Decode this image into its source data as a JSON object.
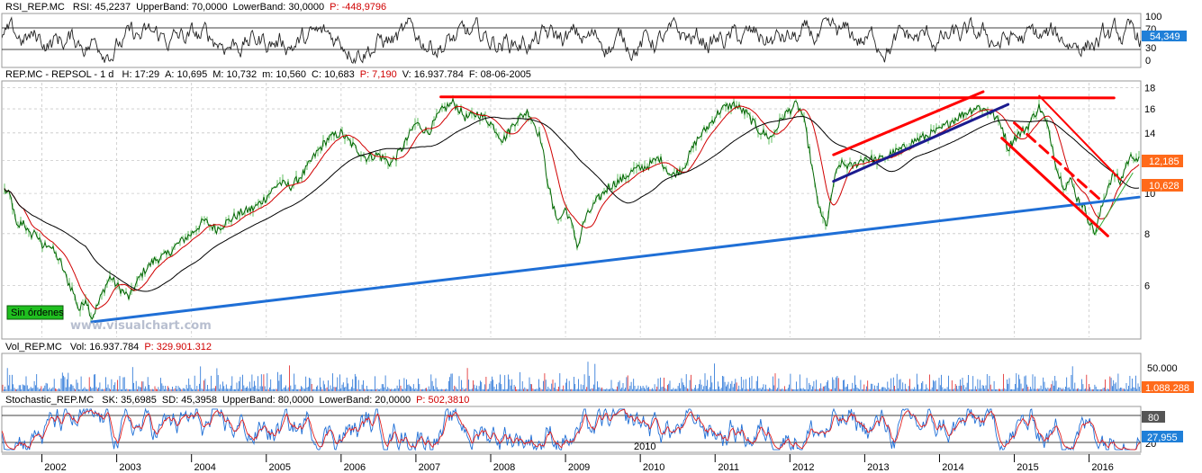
{
  "colors": {
    "price": "#006400",
    "price_fill": "#8fd18f",
    "ma_fast": "#d00000",
    "ma_slow": "#000000",
    "trend_red": "#ff0000",
    "trend_blue": "#1f6fd6",
    "trend_navy": "#1b1b8f",
    "trend_green": "#33aa33",
    "osc_red": "#e02020",
    "osc_blue": "#1f6fd6",
    "volume": "#1f6fd6",
    "badge_blue": "#1f7fd8",
    "badge_orange": "#ff6a1a",
    "badge_green_bg": "#1fbf1f",
    "panel_border": "#9a9a9a",
    "grid": "#c8c8c8"
  },
  "rsi_panel": {
    "name": "RSI_REP.MC",
    "fields": [
      {
        "label": "RSI: 45,2237",
        "color": "#000000"
      },
      {
        "label": "UpperBand: 70,0000",
        "color": "#000000"
      },
      {
        "label": "LowerBand: 30,0000",
        "color": "#000000"
      },
      {
        "label": "P: -448,9796",
        "color": "#d00000"
      }
    ],
    "ticks": [
      "100",
      "70",
      "30",
      "0"
    ],
    "badge": "54,349"
  },
  "price_panel": {
    "title": "REP.MC - REPSOL - 1 d",
    "fields": [
      {
        "label": "H: 17:29",
        "color": "#000000"
      },
      {
        "label": "A: 10,695",
        "color": "#000000"
      },
      {
        "label": "M: 10,732",
        "color": "#000000"
      },
      {
        "label": "m: 10,560",
        "color": "#000000"
      },
      {
        "label": "C: 10,683",
        "color": "#000000"
      },
      {
        "label": "P: 7,190",
        "color": "#d00000"
      },
      {
        "label": "V: 16.937.784",
        "color": "#000000"
      },
      {
        "label": "F: 08-06-2005",
        "color": "#000000"
      }
    ],
    "badge_top": "12,185",
    "badge_bottom": "10,628",
    "orders_label": "Sin órdenes",
    "watermark": "www.visualchart.com"
  },
  "volume_panel": {
    "name": "Vol_REP.MC",
    "fields": [
      {
        "label": "Vol: 16.937.784",
        "color": "#000000"
      },
      {
        "label": "P: 329.901.312",
        "color": "#d00000"
      }
    ],
    "ticks": [
      "50.000"
    ],
    "badge": "1.088.288"
  },
  "stochastic_panel": {
    "name": "Stochastic_REP.MC",
    "fields": [
      {
        "label": "SK: 35,6985",
        "color": "#000000"
      },
      {
        "label": "SD: 45,3958",
        "color": "#000000"
      },
      {
        "label": "UpperBand: 80,0000",
        "color": "#000000"
      },
      {
        "label": "LowerBand: 20,0000",
        "color": "#000000"
      },
      {
        "label": "P: 502,3810",
        "color": "#d00000"
      }
    ],
    "ticks": [
      "80",
      "20"
    ],
    "badge": "27,955",
    "inner_year_label": "2010"
  },
  "chart_data": {
    "type": "line",
    "x_axis": {
      "type": "date",
      "range": [
        "2001-07",
        "2016-09"
      ],
      "tick_labels": [
        "2002",
        "2003",
        "2004",
        "2005",
        "2006",
        "2007",
        "2008",
        "2009",
        "2010",
        "2011",
        "2012",
        "2013",
        "2014",
        "2015",
        "2016"
      ]
    },
    "y_axis": {
      "scale": "log",
      "range": [
        4.5,
        18.5
      ],
      "tick_labels": [
        "18",
        "16",
        "14",
        "12",
        "10",
        "8",
        "6"
      ]
    },
    "grid": true,
    "series": [],
    "price_path": [
      {
        "x": "2001-07",
        "y": 10.2
      },
      {
        "x": "2001-08",
        "y": 9.8
      },
      {
        "x": "2001-09",
        "y": 8.2
      },
      {
        "x": "2001-10",
        "y": 8.6
      },
      {
        "x": "2001-11",
        "y": 7.9
      },
      {
        "x": "2001-12",
        "y": 8.1
      },
      {
        "x": "2002-01",
        "y": 7.4
      },
      {
        "x": "2002-02",
        "y": 7.6
      },
      {
        "x": "2002-03",
        "y": 7.2
      },
      {
        "x": "2002-04",
        "y": 6.8
      },
      {
        "x": "2002-05",
        "y": 6.2
      },
      {
        "x": "2002-06",
        "y": 5.8
      },
      {
        "x": "2002-07",
        "y": 5.2
      },
      {
        "x": "2002-08",
        "y": 5.6
      },
      {
        "x": "2002-09",
        "y": 5.0
      },
      {
        "x": "2002-10",
        "y": 5.4
      },
      {
        "x": "2002-11",
        "y": 5.9
      },
      {
        "x": "2002-12",
        "y": 6.3
      },
      {
        "x": "2003-01",
        "y": 6.0
      },
      {
        "x": "2003-03",
        "y": 5.6
      },
      {
        "x": "2003-05",
        "y": 6.4
      },
      {
        "x": "2003-07",
        "y": 6.9
      },
      {
        "x": "2003-09",
        "y": 7.1
      },
      {
        "x": "2003-11",
        "y": 7.6
      },
      {
        "x": "2004-01",
        "y": 8.0
      },
      {
        "x": "2004-03",
        "y": 8.6
      },
      {
        "x": "2004-05",
        "y": 8.2
      },
      {
        "x": "2004-07",
        "y": 8.6
      },
      {
        "x": "2004-09",
        "y": 9.0
      },
      {
        "x": "2004-11",
        "y": 9.2
      },
      {
        "x": "2005-01",
        "y": 9.8
      },
      {
        "x": "2005-03",
        "y": 10.6
      },
      {
        "x": "2005-05",
        "y": 10.4
      },
      {
        "x": "2005-07",
        "y": 11.2
      },
      {
        "x": "2005-09",
        "y": 12.5
      },
      {
        "x": "2005-11",
        "y": 13.6
      },
      {
        "x": "2006-01",
        "y": 14.0
      },
      {
        "x": "2006-03",
        "y": 13.0
      },
      {
        "x": "2006-05",
        "y": 12.2
      },
      {
        "x": "2006-07",
        "y": 12.4
      },
      {
        "x": "2006-09",
        "y": 11.8
      },
      {
        "x": "2006-11",
        "y": 13.0
      },
      {
        "x": "2007-01",
        "y": 14.8
      },
      {
        "x": "2007-03",
        "y": 14.0
      },
      {
        "x": "2007-05",
        "y": 15.8
      },
      {
        "x": "2007-07",
        "y": 16.6
      },
      {
        "x": "2007-09",
        "y": 15.2
      },
      {
        "x": "2007-11",
        "y": 15.6
      },
      {
        "x": "2008-01",
        "y": 14.8
      },
      {
        "x": "2008-03",
        "y": 13.4
      },
      {
        "x": "2008-05",
        "y": 15.0
      },
      {
        "x": "2008-07",
        "y": 15.8
      },
      {
        "x": "2008-09",
        "y": 13.6
      },
      {
        "x": "2008-10",
        "y": 11.0
      },
      {
        "x": "2008-11",
        "y": 9.2
      },
      {
        "x": "2008-12",
        "y": 8.6
      },
      {
        "x": "2009-01",
        "y": 9.2
      },
      {
        "x": "2009-02",
        "y": 8.4
      },
      {
        "x": "2009-03",
        "y": 7.4
      },
      {
        "x": "2009-04",
        "y": 8.6
      },
      {
        "x": "2009-06",
        "y": 9.6
      },
      {
        "x": "2009-08",
        "y": 10.4
      },
      {
        "x": "2009-10",
        "y": 10.8
      },
      {
        "x": "2009-12",
        "y": 11.4
      },
      {
        "x": "2010-02",
        "y": 11.6
      },
      {
        "x": "2010-04",
        "y": 12.2
      },
      {
        "x": "2010-06",
        "y": 11.0
      },
      {
        "x": "2010-08",
        "y": 11.6
      },
      {
        "x": "2010-10",
        "y": 13.4
      },
      {
        "x": "2010-12",
        "y": 14.6
      },
      {
        "x": "2011-02",
        "y": 16.0
      },
      {
        "x": "2011-04",
        "y": 16.4
      },
      {
        "x": "2011-06",
        "y": 15.6
      },
      {
        "x": "2011-08",
        "y": 14.2
      },
      {
        "x": "2011-10",
        "y": 13.6
      },
      {
        "x": "2011-12",
        "y": 15.4
      },
      {
        "x": "2012-02",
        "y": 16.4
      },
      {
        "x": "2012-03",
        "y": 15.6
      },
      {
        "x": "2012-04",
        "y": 13.0
      },
      {
        "x": "2012-05",
        "y": 10.4
      },
      {
        "x": "2012-06",
        "y": 8.8
      },
      {
        "x": "2012-07",
        "y": 8.4
      },
      {
        "x": "2012-08",
        "y": 10.6
      },
      {
        "x": "2012-09",
        "y": 11.8
      },
      {
        "x": "2012-11",
        "y": 11.6
      },
      {
        "x": "2013-01",
        "y": 12.2
      },
      {
        "x": "2013-03",
        "y": 12.0
      },
      {
        "x": "2013-05",
        "y": 12.4
      },
      {
        "x": "2013-07",
        "y": 12.8
      },
      {
        "x": "2013-09",
        "y": 13.4
      },
      {
        "x": "2013-11",
        "y": 13.8
      },
      {
        "x": "2014-01",
        "y": 14.2
      },
      {
        "x": "2014-03",
        "y": 15.0
      },
      {
        "x": "2014-05",
        "y": 15.6
      },
      {
        "x": "2014-07",
        "y": 16.2
      },
      {
        "x": "2014-09",
        "y": 15.8
      },
      {
        "x": "2014-11",
        "y": 14.6
      },
      {
        "x": "2014-12",
        "y": 12.8
      },
      {
        "x": "2015-01",
        "y": 13.6
      },
      {
        "x": "2015-03",
        "y": 14.4
      },
      {
        "x": "2015-05",
        "y": 16.2
      },
      {
        "x": "2015-06",
        "y": 15.0
      },
      {
        "x": "2015-07",
        "y": 13.2
      },
      {
        "x": "2015-08",
        "y": 11.2
      },
      {
        "x": "2015-09",
        "y": 10.4
      },
      {
        "x": "2015-10",
        "y": 10.8
      },
      {
        "x": "2015-11",
        "y": 9.8
      },
      {
        "x": "2015-12",
        "y": 9.4
      },
      {
        "x": "2016-01",
        "y": 8.6
      },
      {
        "x": "2016-02",
        "y": 8.0
      },
      {
        "x": "2016-03",
        "y": 9.2
      },
      {
        "x": "2016-04",
        "y": 10.4
      },
      {
        "x": "2016-05",
        "y": 11.2
      },
      {
        "x": "2016-06",
        "y": 10.6
      },
      {
        "x": "2016-07",
        "y": 11.8
      },
      {
        "x": "2016-08",
        "y": 12.4
      },
      {
        "x": "2016-09",
        "y": 12.0
      }
    ],
    "trendlines": [
      {
        "name": "support-blue",
        "color": "#1f6fd6",
        "width": 3,
        "dash": false,
        "from": {
          "x": "2002-09",
          "y": 4.9
        },
        "to": {
          "x": "2016-09",
          "y": 9.8
        }
      },
      {
        "name": "resistance-red",
        "color": "#ff0000",
        "width": 3,
        "dash": false,
        "from": {
          "x": "2007-05",
          "y": 17.1
        },
        "to": {
          "x": "2016-05",
          "y": 17.0
        }
      },
      {
        "name": "channel-up-top",
        "color": "#ff0000",
        "width": 3,
        "dash": false,
        "from": {
          "x": "2012-08",
          "y": 12.4
        },
        "to": {
          "x": "2014-08",
          "y": 17.6
        }
      },
      {
        "name": "channel-up-bottom",
        "color": "#1b1b8f",
        "width": 3,
        "dash": false,
        "from": {
          "x": "2012-08",
          "y": 10.7
        },
        "to": {
          "x": "2014-12",
          "y": 16.4
        }
      },
      {
        "name": "channel-down-top",
        "color": "#ff0000",
        "width": 2,
        "dash": false,
        "from": {
          "x": "2015-05",
          "y": 17.2
        },
        "to": {
          "x": "2016-06",
          "y": 10.8
        }
      },
      {
        "name": "channel-down-mid",
        "color": "#ff0000",
        "width": 3,
        "dash": true,
        "from": {
          "x": "2015-01",
          "y": 14.8
        },
        "to": {
          "x": "2016-03",
          "y": 9.6
        }
      },
      {
        "name": "channel-down-bottom",
        "color": "#ff0000",
        "width": 3,
        "dash": false,
        "from": {
          "x": "2014-11",
          "y": 13.6
        },
        "to": {
          "x": "2016-04",
          "y": 7.9
        }
      },
      {
        "name": "green-rise",
        "color": "#33aa33",
        "width": 1,
        "dash": false,
        "from": {
          "x": "2016-02",
          "y": 8.0
        },
        "to": {
          "x": "2016-08",
          "y": 11.2
        }
      }
    ]
  }
}
